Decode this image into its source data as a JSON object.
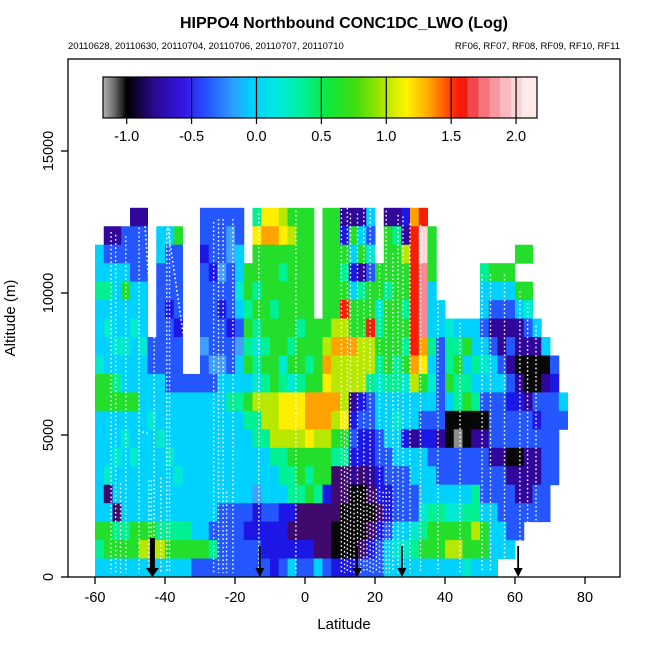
{
  "title": "HIPPO4 Northbound CONC1DC_LWO (Log)",
  "subtitle_left": "20110628, 20110630, 20110704, 20110706, 20110707, 20110710",
  "subtitle_right": "RF06, RF07, RF08, RF09, RF10, RF11",
  "chart_data": {
    "type": "heatmap",
    "xlabel": "Latitude",
    "ylabel": "Altitude (m)",
    "xlim": [
      -67.7,
      90
    ],
    "ylim": [
      0,
      18240
    ],
    "x_ticks": [
      -60,
      -40,
      -20,
      0,
      20,
      40,
      60,
      80
    ],
    "y_ticks": [
      0,
      5000,
      10000,
      15000
    ],
    "grid_on": false,
    "colorbar": {
      "ticks": [
        -1.0,
        -0.5,
        0.0,
        0.5,
        1.0,
        1.5,
        2.0
      ],
      "value_range": [
        -1.1825,
        2.1614
      ],
      "stops": [
        {
          "o": 0,
          "c": "#b2b2b2"
        },
        {
          "o": 2.5,
          "c": "#6f6f6f"
        },
        {
          "o": 5.5,
          "c": "#000000"
        },
        {
          "o": 12,
          "c": "#2c0894"
        },
        {
          "o": 19,
          "c": "#3517e8"
        },
        {
          "o": 24,
          "c": "#2256ff"
        },
        {
          "o": 30,
          "c": "#2f9dff"
        },
        {
          "o": 34,
          "c": "#00cfff"
        },
        {
          "o": 40,
          "c": "#00e8e0"
        },
        {
          "o": 46,
          "c": "#00f09a"
        },
        {
          "o": 52,
          "c": "#0fe83a"
        },
        {
          "o": 58,
          "c": "#3fdc10"
        },
        {
          "o": 63,
          "c": "#8fe400"
        },
        {
          "o": 67,
          "c": "#d6ec00"
        },
        {
          "o": 70,
          "c": "#fff200"
        },
        {
          "o": 75,
          "c": "#ffa800"
        },
        {
          "o": 79,
          "c": "#ff5500"
        },
        {
          "o": 82,
          "c": "#f51a07"
        },
        {
          "o": 84,
          "c": "#ef1d14"
        },
        {
          "o": 84.01,
          "c": "#f1484e"
        },
        {
          "o": 86.5,
          "c": "#f1484e"
        },
        {
          "o": 86.51,
          "c": "#f4747a"
        },
        {
          "o": 89,
          "c": "#f4747a"
        },
        {
          "o": 89.01,
          "c": "#f6989d"
        },
        {
          "o": 91.5,
          "c": "#f6989d"
        },
        {
          "o": 91.51,
          "c": "#f9babd"
        },
        {
          "o": 94,
          "c": "#f9babd"
        },
        {
          "o": 94.01,
          "c": "#fbd6d8"
        },
        {
          "o": 96.5,
          "c": "#fbd6d8"
        },
        {
          "o": 96.51,
          "c": "#fdeaea"
        },
        {
          "o": 100,
          "c": "#fdeaea"
        }
      ]
    },
    "grid": {
      "lat_start": -60,
      "lat_step": 2.5,
      "alt_top": 13000,
      "alt_step": 650,
      "palette": {
        "K": "#070707",
        "G": "#8d8d8d",
        "P": "#31079b",
        "V": "#40096e",
        "N": "#1d17e6",
        "B": "#2457ff",
        "L": "#419fff",
        "C": "#00d2ff",
        "T": "#00ead2",
        "S": "#00f094",
        "E": "#23df2b",
        "Y": "#b8e800",
        "W": "#ffee00",
        "O": "#ffa300",
        "R": "#f61e05",
        "M": "#f58a90",
        "H": "#fbd8da"
      },
      "rows": [
        "....PP......BBBBB.SWWYEEE.EEPPPC.PPNOR................",
        ".PPBBB.CCE..BBBLB.WOOWYEE.EENECB.ESPRHE...............",
        "CBBBBB.CBB..NBBLC.EEEEEEE.EEECET.EEYRHE.........EE....",
        "CCCCBB.BBB..BNLBCEEEESEEE.EESNPBEEEERME.....SEEE......",
        "SSCECC.BBB..BBBBTESEEEEEE.EEECSEESEERMC.....CCCCEE....",
        "CCCCCC.BNB..BBNBCSEESEEEE.EEREEETEESRMCC....CBBBCT....",
        "CTCCTC.BBN..BBBNBESEEEESEEEYYEERSEEERMCCTCCCBPPPPBC...",
        "CCTTCTBBBB..LBBBLSTSEESEEEYOOOYYEEESROSBSSECCBPBPPPC..",
        "TCCCCCBBBB..BLLBCESEETEESEOYYYYYSESEOWCBSECSTCBPKKKKB.",
        "EESCCCCCBBBBBBCCCCTSESTSEEWYYYYSTSSTYETBESSCCCCBPKKPN.",
        "EEEEECCCCCCCCCCSSEYYYWWWOOOOYPNBCCCCCCCBCSESBBBNNPBBBC",
        "CCCCCCTCCCCCCCCCCSSYYWWWOOOYWNBBCCTCCBBBKKKKKBBBBBNBBB",
        "CCCTCCCTCCCCCCCCCCSSYYYYWYYEEBNNBCCNPNNPKGKPPBBBBBBBB.",
        "CCTCTCCCTCCCCCCCCCCCSSEEEEESSNNNBBCCCCBBBBBBBPPKKPPBB.",
        "CTCCCCCCCTCCCCCCCCCCCSSESEEVVPVPNBBBCCCBBBBBBBBPPPPBB.",
        "CVCCCCCCCCCCCCCCCCLCCCSSESNVVKKVNNBBBCCCCCCSBBBBPPBB..",
        "CCVCCCCCCCCCCCBBBBNBBNNVVVVVKKKKVNBBBTSSTTSSCCBBBBBB..",
        "EESSEEESSSSCCBBBBNNNNNVVVVVKKKKVNBCCTSEEEEEYECCBB.....",
        "SEEEEYYYEEEEESBBBBBNNNNNNVVKKKVNBCTTSEEEYYEEECCC......",
        "CCCCCCCCCCCBBBBBBBBBNBCBBCBNNNBBBCCCCCCCCCTCCC........"
      ]
    },
    "flight_tracks": [
      [
        -55.4,
        12150
      ],
      [
        -54.1,
        12050
      ],
      [
        -52.7,
        3300
      ],
      [
        -51.2,
        12000
      ],
      [
        -47.4,
        12300
      ],
      [
        -44.6,
        3400
      ],
      [
        -43.9,
        3400
      ],
      [
        -43.1,
        12300
      ],
      [
        -41.2,
        3500
      ],
      [
        -39.5,
        12250
      ],
      [
        -38.7,
        12250
      ],
      [
        -26.1,
        12500
      ],
      [
        -24.7,
        12600
      ],
      [
        -23.4,
        12600
      ],
      [
        -22.4,
        3000
      ],
      [
        -20.6,
        12600
      ],
      [
        -13.2,
        12800
      ],
      [
        -2.6,
        13050
      ],
      [
        10.4,
        13100
      ],
      [
        11.3,
        5800
      ],
      [
        12.1,
        13000
      ],
      [
        13.0,
        12800
      ],
      [
        14.0,
        3000
      ],
      [
        15.0,
        12800
      ],
      [
        15.9,
        3000
      ],
      [
        16.8,
        13000
      ],
      [
        17.7,
        3100
      ],
      [
        18.6,
        13100
      ],
      [
        19.5,
        3000
      ],
      [
        20.4,
        3100
      ],
      [
        21.3,
        11900
      ],
      [
        22.3,
        3000
      ],
      [
        23.2,
        12900
      ],
      [
        24.1,
        3000
      ],
      [
        25.1,
        11400
      ],
      [
        26.6,
        12750
      ],
      [
        28.0,
        12700
      ],
      [
        30.0,
        12450
      ],
      [
        33.0,
        12400
      ],
      [
        38.0,
        12150
      ],
      [
        44.3,
        8950
      ],
      [
        50.6,
        10650
      ],
      [
        53.0,
        10650
      ],
      [
        57.0,
        10650
      ],
      [
        61.4,
        10050
      ],
      [
        63.6,
        9650
      ],
      [
        66.0,
        8850
      ]
    ],
    "track_segments": [
      [
        -39.2,
        12300,
        -34.5,
        8300
      ],
      [
        -45.7,
        12350,
        -43.8,
        8800
      ],
      [
        -47.6,
        5150,
        -44.9,
        5050
      ]
    ],
    "arrows": [
      {
        "lat": -43.6,
        "bold": true
      },
      {
        "lat": -12.9,
        "bold": false
      },
      {
        "lat": 14.9,
        "bold": false
      },
      {
        "lat": 27.7,
        "bold": false
      },
      {
        "lat": 60.9,
        "bold": false
      }
    ]
  }
}
